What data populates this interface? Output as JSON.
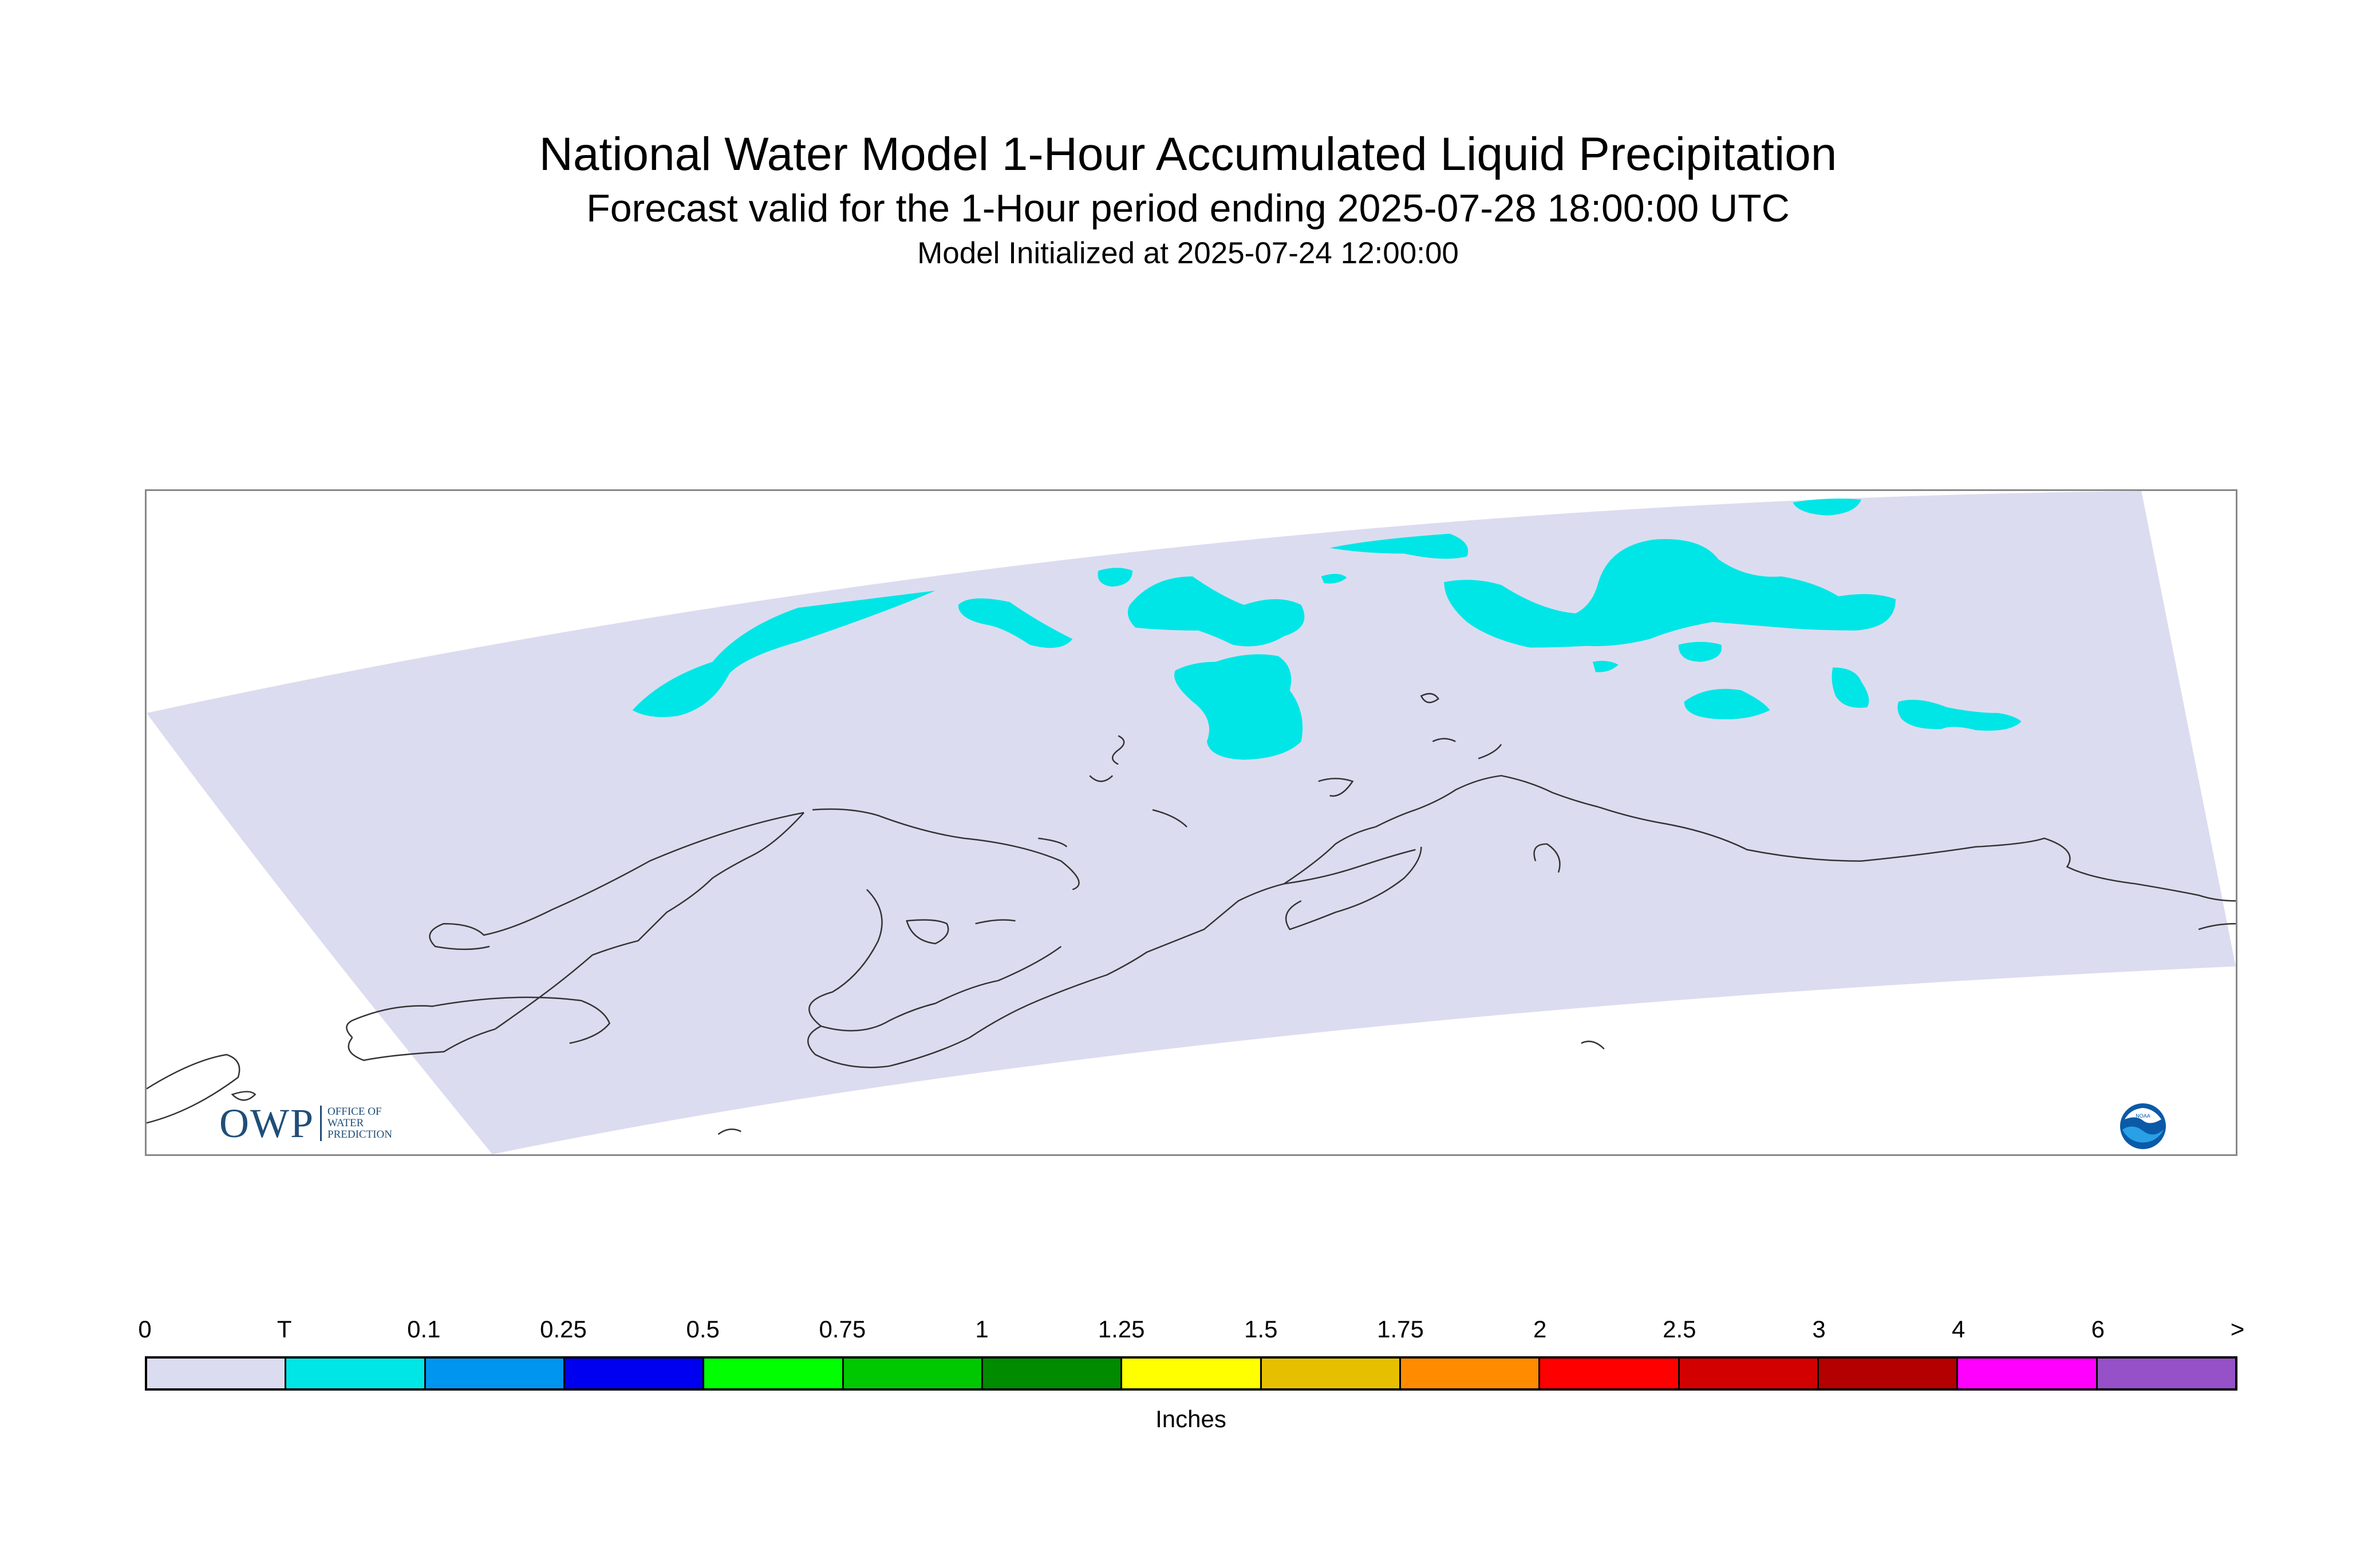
{
  "title": "National Water Model 1-Hour Accumulated Liquid Precipitation",
  "subtitle": "Forecast valid for the 1-Hour period ending 2025-07-28 18:00:00 UTC",
  "init_line": "Model Initialized at 2025-07-24 12:00:00",
  "legend": {
    "labels": [
      "0",
      "T",
      "0.1",
      "0.25",
      "0.5",
      "0.75",
      "1",
      "1.25",
      "1.5",
      "1.75",
      "2",
      "2.5",
      "3",
      "4",
      "6",
      ">"
    ],
    "colors": [
      "#dcdcf0",
      "#00e6e6",
      "#0096f0",
      "#0000f0",
      "#00ff00",
      "#00c800",
      "#008c00",
      "#ffff00",
      "#e6c000",
      "#ff8c00",
      "#ff0000",
      "#d20000",
      "#b40000",
      "#ff00ff",
      "#9650c8"
    ],
    "units": "Inches"
  },
  "map": {
    "domain_color": "#dcdcf0",
    "precip_color": "#00e6e6",
    "coastline_color": "#333333"
  },
  "logos": {
    "owp_letters": "OWP",
    "owp_line1": "OFFICE OF",
    "owp_line2": "WATER",
    "owp_line3": "PREDICTION",
    "noaa": "NOAA"
  }
}
